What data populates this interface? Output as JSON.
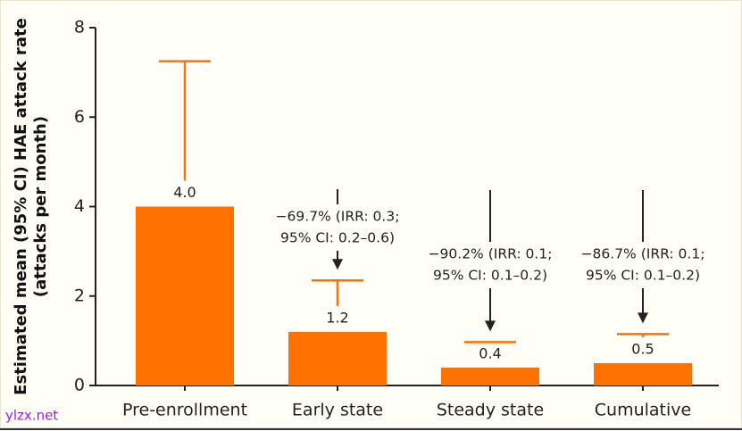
{
  "chart_data": {
    "type": "bar",
    "ylabel": [
      "Estimated mean (95% CI) HAE attack rate",
      "(attacks per month)"
    ],
    "categories": [
      "Pre-enrollment",
      "Early state",
      "Steady state",
      "Cumulative"
    ],
    "values": [
      4.0,
      1.2,
      0.4,
      0.5
    ],
    "value_labels": [
      "4.0",
      "1.2",
      "0.4",
      "0.5"
    ],
    "error_upper": [
      7.25,
      2.35,
      0.97,
      1.15
    ],
    "color": "#ff7200",
    "ylim": [
      0,
      8
    ],
    "yticks": [
      0,
      2,
      4,
      6,
      8
    ],
    "grid": false,
    "annotations": [
      [
        "−69.7% (IRR: 0.3;",
        "95% CI: 0.2–0.6)"
      ],
      [
        "−90.2% (IRR: 0.1;",
        "95% CI: 0.1–0.2)"
      ],
      [
        "−86.7% (IRR: 0.1;",
        "95% CI: 0.1–0.2)"
      ]
    ],
    "watermark": "ylzx.net"
  }
}
